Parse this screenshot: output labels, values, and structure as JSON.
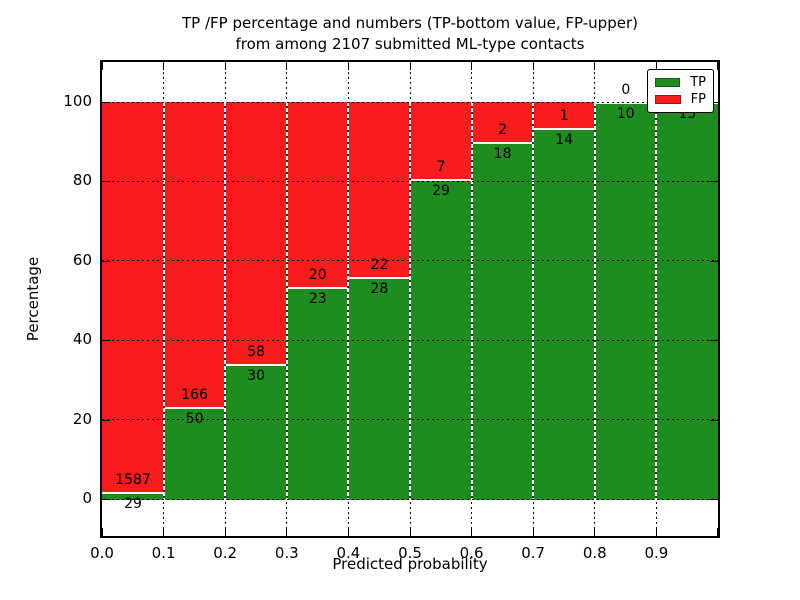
{
  "figure": {
    "title_line1": "TP /FP percentage and numbers (TP-bottom value, FP-upper)",
    "title_line2": "from among 2107 submitted ML-type contacts"
  },
  "chart_data": {
    "type": "bar",
    "stacked": true,
    "title": "TP /FP percentage and numbers (TP-bottom value, FP-upper) from among 2107 submitted ML-type contacts",
    "xlabel": "Predicted probability",
    "ylabel": "Percentage",
    "total_contacts": 2107,
    "note": "TP count labeled below segment boundary, FP count above",
    "xlim": [
      0.0,
      1.0
    ],
    "ylim": [
      -10,
      110
    ],
    "grid": true,
    "x_tick_labels": [
      "0.0",
      "0.1",
      "0.2",
      "0.3",
      "0.4",
      "0.5",
      "0.6",
      "0.7",
      "0.8",
      "0.9"
    ],
    "y_ticks": [
      0,
      20,
      40,
      60,
      80,
      100
    ],
    "y_tick_labels": [
      "0",
      "20",
      "40",
      "60",
      "80",
      "100"
    ],
    "legend": {
      "position": "upper right",
      "entries": [
        {
          "label": "TP",
          "color": "#1e8c1e"
        },
        {
          "label": "FP",
          "color": "#f91c1c"
        }
      ]
    },
    "bars": [
      {
        "x_start": 0.0,
        "x_end": 0.1,
        "tp": 29,
        "fp": 1587,
        "tp_pct": 1.8,
        "fp_pct": 98.2
      },
      {
        "x_start": 0.1,
        "x_end": 0.2,
        "tp": 50,
        "fp": 166,
        "tp_pct": 23.1,
        "fp_pct": 76.9
      },
      {
        "x_start": 0.2,
        "x_end": 0.3,
        "tp": 30,
        "fp": 58,
        "tp_pct": 34.1,
        "fp_pct": 65.9
      },
      {
        "x_start": 0.3,
        "x_end": 0.4,
        "tp": 23,
        "fp": 20,
        "tp_pct": 53.5,
        "fp_pct": 46.5
      },
      {
        "x_start": 0.4,
        "x_end": 0.5,
        "tp": 28,
        "fp": 22,
        "tp_pct": 56.0,
        "fp_pct": 44.0
      },
      {
        "x_start": 0.5,
        "x_end": 0.6,
        "tp": 29,
        "fp": 7,
        "tp_pct": 80.6,
        "fp_pct": 19.4
      },
      {
        "x_start": 0.6,
        "x_end": 0.7,
        "tp": 18,
        "fp": 2,
        "tp_pct": 90.0,
        "fp_pct": 10.0
      },
      {
        "x_start": 0.7,
        "x_end": 0.8,
        "tp": 14,
        "fp": 1,
        "tp_pct": 93.3,
        "fp_pct": 6.7
      },
      {
        "x_start": 0.8,
        "x_end": 0.9,
        "tp": 10,
        "fp": 0,
        "tp_pct": 100.0,
        "fp_pct": 0.0
      },
      {
        "x_start": 0.9,
        "x_end": 1.0,
        "tp": 13,
        "fp": 0,
        "tp_pct": 100.0,
        "fp_pct": 0.0
      }
    ]
  },
  "colors": {
    "tp": "#1e8c1e",
    "fp": "#f91c1c",
    "grid": "#000000",
    "background": "#ffffff",
    "axis": "#000000"
  }
}
